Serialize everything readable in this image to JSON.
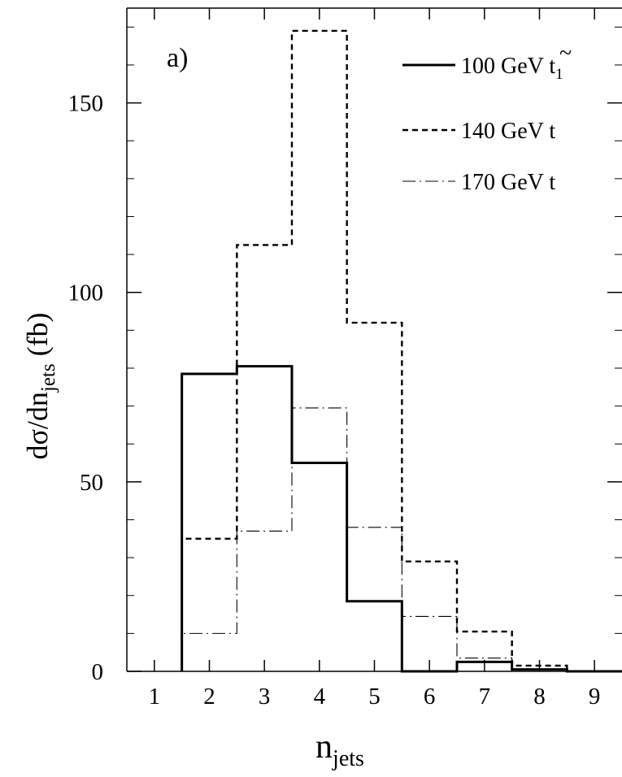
{
  "chart_data": {
    "type": "histogram",
    "panel_label": "a)",
    "xlabel": {
      "main": "n",
      "sub": "jets"
    },
    "ylabel": {
      "pre": "dσ/dn",
      "sub": "jets",
      "post": " (fb)"
    },
    "x_ticks": [
      "1",
      "2",
      "3",
      "4",
      "5",
      "6",
      "7",
      "8",
      "9"
    ],
    "y_ticks": [
      0,
      50,
      100,
      150
    ],
    "xlim": [
      0.5,
      9.5
    ],
    "ylim": [
      0,
      175
    ],
    "bin_edges": [
      1.5,
      2.5,
      3.5,
      4.5,
      5.5,
      6.5,
      7.5,
      8.5,
      9.5
    ],
    "series": [
      {
        "name": "100 GeV t̃₁",
        "legend": {
          "text": "100 GeV ",
          "symbol": "t",
          "tilde": "~",
          "sub": "1"
        },
        "style": "solid",
        "values": [
          78.5,
          80.5,
          55,
          18.5,
          0,
          2.5,
          0.5,
          0
        ]
      },
      {
        "name": "140 GeV t",
        "legend": {
          "text": "140 GeV t"
        },
        "style": "dashed",
        "values": [
          35,
          112.5,
          169,
          92,
          29,
          10.5,
          1.5,
          0
        ]
      },
      {
        "name": "170 GeV t",
        "legend": {
          "text": "170 GeV t"
        },
        "style": "dashdot",
        "values": [
          10,
          37,
          69.5,
          38,
          14.5,
          3.5,
          0.5,
          0
        ]
      }
    ]
  }
}
